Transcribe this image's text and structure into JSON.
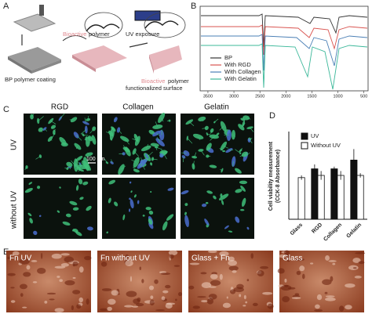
{
  "panel_a": {
    "letter": "A",
    "coating_label": "BP polymer coating",
    "polymer_label_1": "Bioactive",
    "polymer_label_2": "polymer",
    "uv_label": "UV exposure",
    "result_label_1": "Bioactive",
    "result_label_2": "polymer",
    "result_label_3": "functionalized surface"
  },
  "panel_b": {
    "letter": "B",
    "legend": [
      "BP",
      "With RGD",
      "With Collagen",
      "With Gelatin"
    ],
    "colors": [
      "#333333",
      "#d9534f",
      "#4a7fb5",
      "#3cb89a"
    ],
    "xlim": [
      3650,
      420
    ],
    "xticks": [
      3500,
      3000,
      2500,
      2000,
      1500,
      1000,
      500
    ]
  },
  "panel_c": {
    "letter": "C",
    "columns": [
      "RGD",
      "Collagen",
      "Gelatin"
    ],
    "rows": [
      "UV",
      "without UV"
    ],
    "scale_bar": "100 µm"
  },
  "panel_d_letter": "D",
  "chart_data": {
    "type": "bar",
    "y_label_1": "Cell viability measurement",
    "y_label_2": "(CCK-8 Absorbance)",
    "categories": [
      "Glass",
      "RGD",
      "Collagen",
      "Gelatin"
    ],
    "series": [
      {
        "name": "UV",
        "color": "#111111",
        "values": [
          null,
          0.23,
          0.23,
          0.27
        ],
        "errors": [
          null,
          0.02,
          0.01,
          0.05
        ]
      },
      {
        "name": "Without UV",
        "color": "#ffffff",
        "values": [
          0.19,
          0.2,
          0.2,
          0.2
        ],
        "errors": [
          0.01,
          0.02,
          0.02,
          0.01
        ]
      }
    ],
    "ylim": [
      0,
      0.4
    ]
  },
  "panel_e": {
    "letter": "E",
    "labels": [
      "Fn UV",
      "Fn without UV",
      "Glass + Fn",
      "Glass"
    ]
  }
}
